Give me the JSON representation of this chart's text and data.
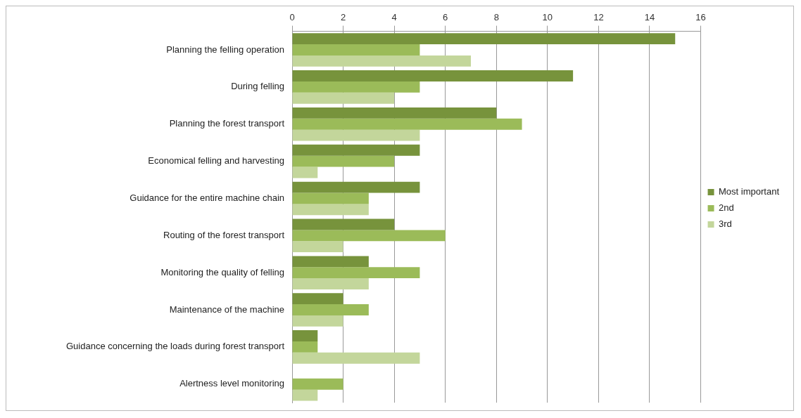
{
  "chart_data": {
    "type": "bar",
    "orientation": "horizontal",
    "categories": [
      "Planning the felling operation",
      "During felling",
      "Planning the forest transport",
      "Economical felling and harvesting",
      "Guidance for the entire machine chain",
      "Routing of the forest transport",
      "Monitoring the quality of felling",
      "Maintenance of the machine",
      "Guidance concerning the loads during forest transport",
      "Alertness level monitoring"
    ],
    "series": [
      {
        "name": "Most important",
        "color": "#77933c",
        "values": [
          15,
          11,
          8,
          5,
          5,
          4,
          3,
          2,
          1,
          0
        ]
      },
      {
        "name": "2nd",
        "color": "#9bbb59",
        "values": [
          5,
          5,
          9,
          4,
          3,
          6,
          5,
          3,
          1,
          2
        ]
      },
      {
        "name": "3rd",
        "color": "#c3d69b",
        "values": [
          7,
          4,
          5,
          1,
          3,
          2,
          3,
          2,
          5,
          1
        ]
      }
    ],
    "xlim": [
      0,
      16
    ],
    "xticks": [
      0,
      2,
      4,
      6,
      8,
      10,
      12,
      14,
      16
    ],
    "grid": "x",
    "legend": "right"
  }
}
